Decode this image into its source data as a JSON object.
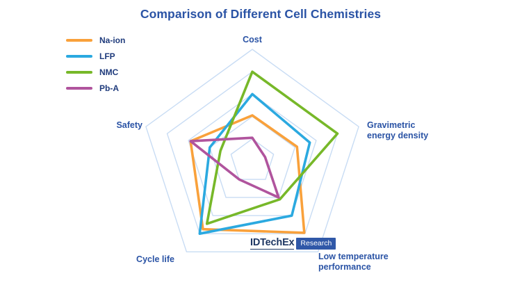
{
  "title": "Comparison of Different Cell Chemistries",
  "watermark": {
    "brand": "IDTechEx",
    "badge": "Research"
  },
  "chart_data": {
    "type": "radar",
    "title": "Comparison of Different Cell Chemistries",
    "axes": [
      "Cost",
      "Gravimetric energy density",
      "Low temperature performance",
      "Cycle life",
      "Safety"
    ],
    "scale": {
      "min": 0,
      "max": 5,
      "grid_levels": 5
    },
    "grid": {
      "color": "#C8DCF4",
      "shape": "pentagon",
      "spokes": false
    },
    "legend_position": "top-left",
    "series": [
      {
        "name": "Na-ion",
        "color": "#F9A13B",
        "values": [
          2.05,
          2.1,
          3.95,
          3.75,
          2.9
        ]
      },
      {
        "name": "LFP",
        "color": "#2BA9E0",
        "values": [
          3.0,
          2.7,
          3.0,
          4.0,
          2.0
        ]
      },
      {
        "name": "NMC",
        "color": "#77B829",
        "values": [
          4.0,
          4.0,
          2.1,
          3.45,
          1.5
        ]
      },
      {
        "name": "Pb-A",
        "color": "#B0549D",
        "values": [
          1.05,
          0.6,
          2.0,
          1.0,
          2.9
        ]
      }
    ]
  }
}
